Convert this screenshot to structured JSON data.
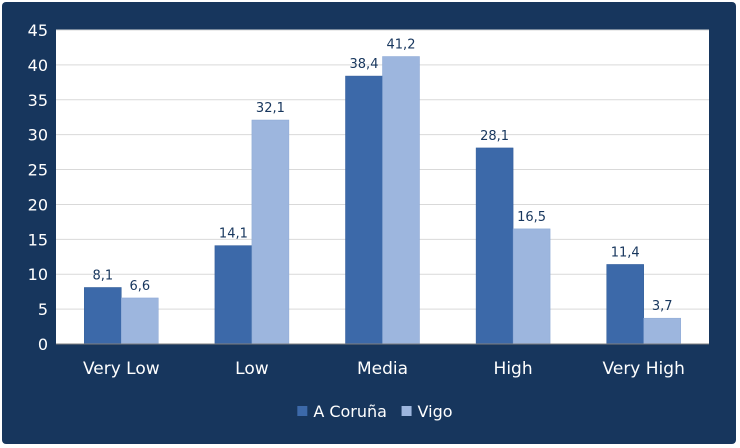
{
  "chart_data": {
    "type": "bar",
    "categories": [
      "Very Low",
      "Low",
      "Media",
      "High",
      "Very High"
    ],
    "series": [
      {
        "name": "A Coruña",
        "values": [
          8.1,
          14.1,
          38.4,
          28.1,
          11.4
        ],
        "labels": [
          "8,1",
          "14,1",
          "38,4",
          "28,1",
          "11,4"
        ],
        "color": "#3c69a9"
      },
      {
        "name": "Vigo",
        "values": [
          6.6,
          32.1,
          41.2,
          16.5,
          3.7
        ],
        "labels": [
          "6,6",
          "32,1",
          "41,2",
          "16,5",
          "3,7"
        ],
        "color": "#9db6de"
      }
    ],
    "ylim": [
      0,
      45
    ],
    "yticks": [
      "0",
      "5",
      "10",
      "15",
      "20",
      "25",
      "30",
      "35",
      "40",
      "45"
    ],
    "grid": true,
    "legend": "bottom",
    "colors": {
      "background": "#17365d",
      "plot_background": "#ffffff",
      "grid": "#d9d9d9",
      "text": "#ffffff",
      "data_label": "#17365d"
    }
  }
}
